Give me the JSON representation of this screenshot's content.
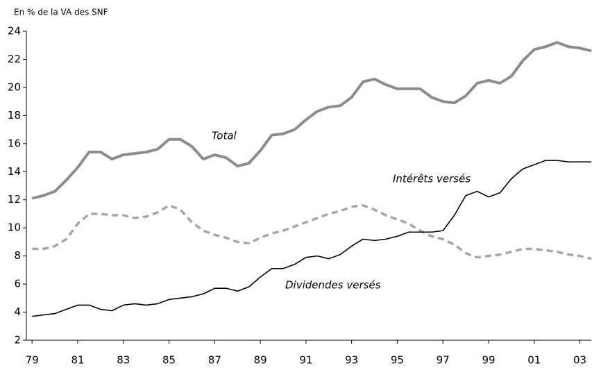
{
  "chart_data": {
    "type": "line",
    "y_label": "En % de la VA des SNF",
    "x": [
      1979,
      1979.5,
      1980,
      1980.5,
      1981,
      1981.5,
      1982,
      1982.5,
      1983,
      1983.5,
      1984,
      1984.5,
      1985,
      1985.5,
      1986,
      1986.5,
      1987,
      1987.5,
      1988,
      1988.5,
      1989,
      1989.5,
      1990,
      1990.5,
      1991,
      1991.5,
      1992,
      1992.5,
      1993,
      1993.5,
      1994,
      1994.5,
      1995,
      1995.5,
      1996,
      1996.5,
      1997,
      1997.5,
      1998,
      1998.5,
      1999,
      1999.5,
      2000,
      2000.5,
      2001,
      2001.5,
      2002,
      2002.5,
      2003,
      2003.5
    ],
    "series": [
      {
        "name": "Total",
        "color": "#8c8c8c",
        "style": "solid",
        "width": 4,
        "values": [
          12.1,
          12.3,
          12.6,
          13.4,
          14.3,
          15.4,
          15.4,
          14.9,
          15.2,
          15.3,
          15.4,
          15.6,
          16.3,
          16.3,
          15.8,
          14.9,
          15.2,
          15.0,
          14.4,
          14.6,
          15.5,
          16.6,
          16.7,
          17.0,
          17.7,
          18.3,
          18.6,
          18.7,
          19.3,
          20.4,
          20.6,
          20.2,
          19.9,
          19.9,
          19.9,
          19.3,
          19.0,
          18.9,
          19.4,
          20.3,
          20.5,
          20.3,
          20.8,
          21.9,
          22.7,
          22.9,
          23.2,
          22.9,
          22.8,
          22.6
        ]
      },
      {
        "name": "Intérêts versés",
        "color": "#a6a6a6",
        "style": "dashed",
        "width": 3.5,
        "values": [
          8.5,
          8.5,
          8.7,
          9.2,
          10.3,
          11.0,
          11.0,
          10.9,
          10.9,
          10.7,
          10.8,
          11.1,
          11.6,
          11.3,
          10.4,
          9.8,
          9.5,
          9.3,
          9.0,
          8.9,
          9.3,
          9.6,
          9.8,
          10.1,
          10.4,
          10.7,
          11.0,
          11.2,
          11.5,
          11.6,
          11.3,
          10.9,
          10.6,
          10.3,
          9.8,
          9.4,
          9.2,
          8.8,
          8.2,
          7.9,
          8.0,
          8.1,
          8.3,
          8.5,
          8.5,
          8.4,
          8.3,
          8.1,
          8.0,
          7.8
        ]
      },
      {
        "name": "Dividendes versés",
        "color": "#000000",
        "style": "solid",
        "width": 1.6,
        "values": [
          3.7,
          3.8,
          3.9,
          4.2,
          4.5,
          4.5,
          4.2,
          4.1,
          4.5,
          4.6,
          4.5,
          4.6,
          4.9,
          5.0,
          5.1,
          5.3,
          5.7,
          5.7,
          5.5,
          5.8,
          6.5,
          7.1,
          7.1,
          7.4,
          7.9,
          8.0,
          7.8,
          8.1,
          8.7,
          9.2,
          9.1,
          9.2,
          9.4,
          9.7,
          9.7,
          9.7,
          9.8,
          10.9,
          12.3,
          12.6,
          12.2,
          12.5,
          13.5,
          14.2,
          14.5,
          14.8,
          14.8,
          14.7,
          14.7,
          14.7
        ]
      }
    ],
    "xlim": [
      1978.75,
      2003.5
    ],
    "xticks": [
      {
        "value": 1979,
        "label": "79"
      },
      {
        "value": 1981,
        "label": "81"
      },
      {
        "value": 1983,
        "label": "83"
      },
      {
        "value": 1985,
        "label": "85"
      },
      {
        "value": 1987,
        "label": "87"
      },
      {
        "value": 1989,
        "label": "89"
      },
      {
        "value": 1991,
        "label": "91"
      },
      {
        "value": 1993,
        "label": "93"
      },
      {
        "value": 1995,
        "label": "95"
      },
      {
        "value": 1997,
        "label": "97"
      },
      {
        "value": 1999,
        "label": "99"
      },
      {
        "value": 2001,
        "label": "01"
      },
      {
        "value": 2003,
        "label": "03"
      }
    ],
    "ylim": [
      2,
      24
    ],
    "yticks": [
      2,
      4,
      6,
      8,
      10,
      12,
      14,
      16,
      18,
      20,
      22,
      24
    ],
    "grid": false
  }
}
